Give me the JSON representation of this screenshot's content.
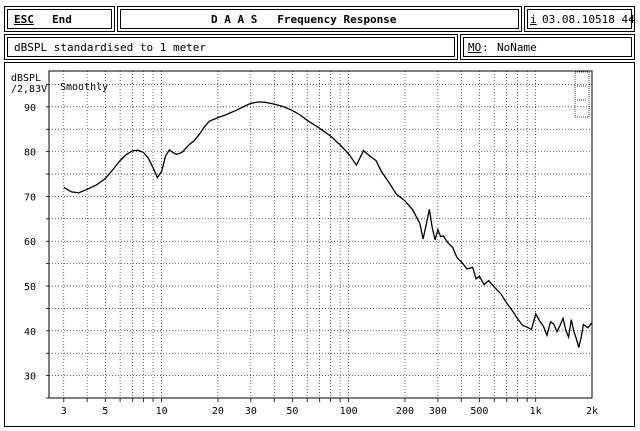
{
  "header": {
    "esc_key": "ESC",
    "esc_label": "End",
    "title": "D A A S   Frequency Response",
    "info_key": "i",
    "timestamp": "03.08.10518 44"
  },
  "subheader": {
    "note": "dBSPL standardised to 1 meter",
    "mo_key": "MO",
    "mo_suffix": ":",
    "mo_name": "NoName"
  },
  "plot": {
    "y_unit_line1": "dBSPL",
    "y_unit_line2": "/2,83V",
    "smoothing_label": "Smoothly"
  },
  "colors": {
    "background": "#ffffff",
    "ink": "#000000"
  },
  "chart_data": {
    "type": "line",
    "title": "",
    "xlabel": "",
    "ylabel": "dBSPL /2,83V",
    "x_scale": "log",
    "xlim": [
      2.5,
      2000
    ],
    "ylim": [
      25,
      98
    ],
    "x_ticks": [
      {
        "v": 3,
        "label": "3"
      },
      {
        "v": 5,
        "label": "5"
      },
      {
        "v": 10,
        "label": "10"
      },
      {
        "v": 20,
        "label": "20"
      },
      {
        "v": 30,
        "label": "30"
      },
      {
        "v": 50,
        "label": "50"
      },
      {
        "v": 100,
        "label": "100"
      },
      {
        "v": 200,
        "label": "200"
      },
      {
        "v": 300,
        "label": "300"
      },
      {
        "v": 500,
        "label": "500"
      },
      {
        "v": 1000,
        "label": "1k"
      },
      {
        "v": 2000,
        "label": "2k"
      }
    ],
    "y_ticks": [
      30,
      40,
      50,
      60,
      70,
      80,
      90
    ],
    "grid": true,
    "series": [
      {
        "x": [
          3,
          3.3,
          3.6,
          4,
          4.5,
          5,
          5.5,
          6,
          6.5,
          7,
          7.5,
          8,
          8.5,
          9,
          9.5,
          10,
          10.5,
          11,
          11.5,
          12,
          12.5,
          13,
          14,
          15,
          16,
          17,
          18,
          20,
          22,
          25,
          28,
          30,
          33,
          36,
          40,
          45,
          50,
          55,
          60,
          70,
          80,
          90,
          100,
          110,
          120,
          130,
          140,
          150,
          165,
          180,
          200,
          220,
          240,
          250,
          260,
          270,
          280,
          290,
          300,
          310,
          320,
          340,
          360,
          380,
          400,
          430,
          460,
          480,
          500,
          530,
          560,
          600,
          650,
          700,
          750,
          800,
          850,
          900,
          950,
          1000,
          1050,
          1100,
          1150,
          1200,
          1250,
          1300,
          1350,
          1400,
          1450,
          1500,
          1550,
          1600,
          1650,
          1700,
          1750,
          1800,
          1900,
          2000
        ],
        "y": [
          72,
          71,
          70.8,
          71.6,
          72.6,
          74,
          76,
          78,
          79.4,
          80.2,
          80.3,
          79.8,
          78.5,
          76.4,
          74.2,
          75.6,
          79,
          80.4,
          79.8,
          79.4,
          79.6,
          80,
          81.5,
          82.5,
          84,
          85.6,
          86.8,
          87.6,
          88.2,
          89.2,
          90.2,
          90.8,
          91.1,
          91,
          90.6,
          90,
          89.2,
          88.2,
          87,
          85.2,
          83.5,
          81.5,
          79.5,
          77,
          80.2,
          79,
          78,
          75.5,
          73,
          70.5,
          69,
          67,
          64,
          60.5,
          63.8,
          67.1,
          63,
          60.3,
          62.6,
          61,
          61.2,
          59.6,
          58.6,
          56.3,
          55.4,
          53.8,
          54.2,
          51.6,
          52.2,
          50.3,
          51.2,
          49.8,
          48.3,
          46.2,
          44.5,
          42.7,
          41.2,
          40.8,
          40.3,
          43.8,
          42.2,
          41,
          39,
          42,
          41.5,
          39.8,
          41.2,
          42.8,
          40.1,
          38.6,
          42.5,
          39.8,
          38.2,
          36.3,
          38.6,
          41.4,
          40.7,
          41.8
        ]
      }
    ]
  }
}
